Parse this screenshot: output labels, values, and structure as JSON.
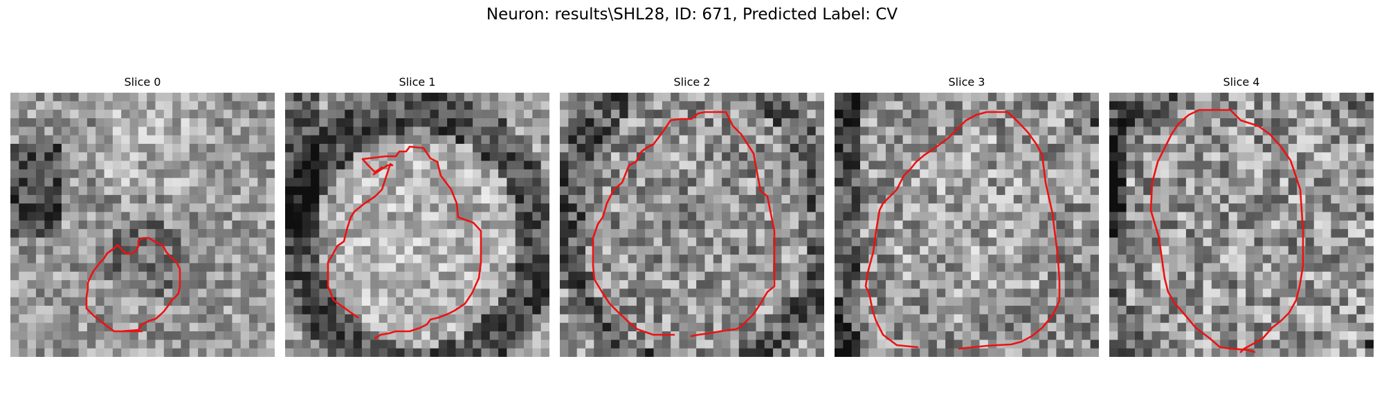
{
  "figure": {
    "title": "Neuron: results\\SHL28, ID: 671, Predicted Label: CV"
  },
  "panels": [
    {
      "title": "Slice 0"
    },
    {
      "title": "Slice 1"
    },
    {
      "title": "Slice 2"
    },
    {
      "title": "Slice 3"
    },
    {
      "title": "Slice 4"
    }
  ],
  "colors": {
    "contour": "#ee1111",
    "background": "#ffffff"
  }
}
